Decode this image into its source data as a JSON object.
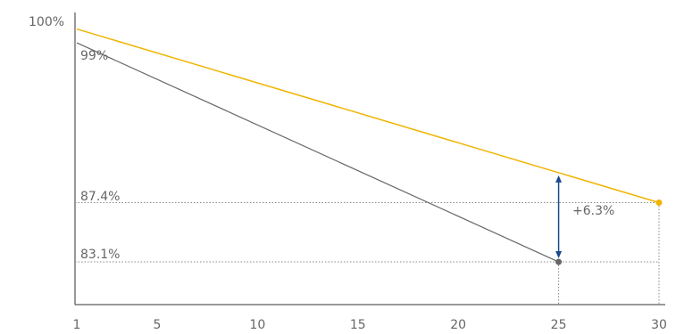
{
  "chart_data": {
    "type": "line",
    "x_ticks": [
      "1",
      "5",
      "10",
      "15",
      "20",
      "25",
      "30"
    ],
    "xlim": [
      1,
      30
    ],
    "ylim": [
      80,
      101.2
    ],
    "y_top_label": "100%",
    "series": [
      {
        "color": "#f0b400",
        "points": [
          [
            1,
            100
          ],
          [
            30,
            87.4
          ]
        ]
      },
      {
        "color": "#666666",
        "points": [
          [
            1,
            99
          ],
          [
            25,
            83.1
          ]
        ]
      }
    ],
    "annotations": {
      "start_label": "99%",
      "ref_label_1": "87.4%",
      "ref_label_2": "83.1%",
      "gap_label": "+6.3%"
    },
    "gridlines": "dotted reference lines at 87.4% and 83.1%",
    "arrow_color": "#1a4a8a"
  }
}
